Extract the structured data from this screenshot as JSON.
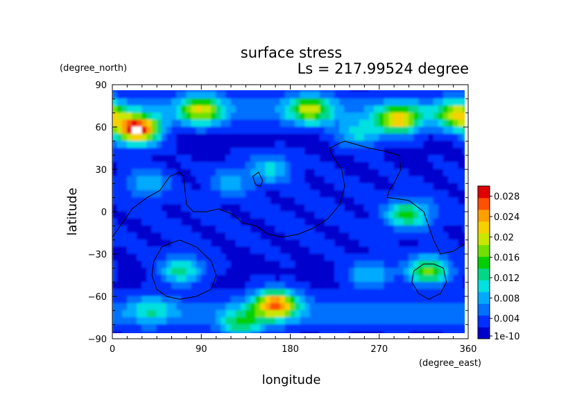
{
  "chart_data": {
    "type": "heatmap",
    "title": "surface stress",
    "subtitle": "Ls = 217.99524 degree",
    "xlabel": "longitude",
    "ylabel": "latitude",
    "x_units": "(degree_east)",
    "y_units": "(degree_north)",
    "xlim": [
      0,
      360
    ],
    "ylim": [
      -90,
      90
    ],
    "x_ticks": [
      "0",
      "90",
      "180",
      "270",
      "360"
    ],
    "y_ticks": [
      "90",
      "60",
      "30",
      "0",
      "−30",
      "−60",
      "−90"
    ],
    "x_tick_values": [
      0,
      90,
      180,
      270,
      360
    ],
    "y_tick_values": [
      90,
      60,
      30,
      0,
      -30,
      -60,
      -90
    ],
    "colorbar": {
      "labels": [
        "0.028",
        "0.024",
        "0.02",
        "0.016",
        "0.012",
        "0.008",
        "0.004",
        "1e-10"
      ],
      "label_values": [
        0.028,
        0.024,
        0.02,
        0.016,
        0.012,
        0.008,
        0.004,
        0
      ],
      "max": 0.03,
      "colors": [
        "#0000cd",
        "#0030ff",
        "#0070ff",
        "#00aaff",
        "#00e0e0",
        "#00d888",
        "#00d000",
        "#70e000",
        "#c8e600",
        "#f8d000",
        "#ffa000",
        "#ff5000",
        "#e00000"
      ]
    },
    "background_level": 0.0015,
    "features": [
      {
        "lon": 25,
        "lat": 58,
        "value": 0.03
      },
      {
        "lon": 165,
        "lat": -66,
        "value": 0.024
      },
      {
        "lon": 90,
        "lat": 72,
        "value": 0.017
      },
      {
        "lon": 200,
        "lat": 72,
        "value": 0.016
      },
      {
        "lon": 290,
        "lat": 65,
        "value": 0.02
      },
      {
        "lon": 350,
        "lat": 68,
        "value": 0.018
      },
      {
        "lon": 320,
        "lat": -42,
        "value": 0.016
      },
      {
        "lon": 300,
        "lat": -2,
        "value": 0.014
      },
      {
        "lon": 70,
        "lat": -42,
        "value": 0.012
      },
      {
        "lon": 130,
        "lat": -80,
        "value": 0.012
      },
      {
        "lon": 250,
        "lat": 55,
        "value": 0.01
      },
      {
        "lon": 160,
        "lat": 30,
        "value": 0.009
      },
      {
        "lon": 35,
        "lat": 20,
        "value": 0.008
      },
      {
        "lon": 260,
        "lat": -45,
        "value": 0.009
      },
      {
        "lon": 120,
        "lat": 20,
        "value": 0.007
      },
      {
        "lon": 40,
        "lat": -70,
        "value": 0.008
      }
    ],
    "contours": [
      {
        "lon": [
          0,
          8,
          20,
          35,
          48,
          58,
          68,
          72,
          75,
          82,
          95,
          108,
          122,
          132,
          145,
          158,
          172,
          188,
          202,
          218,
          230,
          235,
          232,
          222,
          220,
          228,
          235,
          245,
          260,
          275,
          290,
          292,
          285,
          280,
          278,
          280,
          300,
          315,
          325,
          332,
          345,
          358
        ],
        "lat": [
          -18,
          -10,
          2,
          10,
          15,
          25,
          28,
          25,
          5,
          0,
          0,
          2,
          -2,
          -8,
          -10,
          -16,
          -18,
          -16,
          -12,
          -5,
          5,
          18,
          30,
          40,
          45,
          48,
          50,
          48,
          45,
          43,
          40,
          30,
          20,
          15,
          10,
          10,
          8,
          0,
          -20,
          -30,
          -28,
          -22
        ]
      },
      {
        "lon": [
          142,
          148,
          152,
          150,
          145,
          142
        ],
        "lat": [
          25,
          28,
          22,
          18,
          19,
          25
        ]
      },
      {
        "lon": [
          68,
          85,
          100,
          105,
          100,
          85,
          68,
          55,
          45,
          40,
          42,
          50,
          60,
          68
        ],
        "lat": [
          -20,
          -25,
          -35,
          -45,
          -55,
          -60,
          -62,
          -60,
          -55,
          -45,
          -35,
          -25,
          -22,
          -20
        ]
      },
      {
        "lon": [
          325,
          335,
          338,
          332,
          320,
          310,
          303,
          305,
          315,
          325
        ],
        "lat": [
          -37,
          -40,
          -50,
          -58,
          -62,
          -58,
          -50,
          -42,
          -37,
          -37
        ]
      }
    ]
  }
}
